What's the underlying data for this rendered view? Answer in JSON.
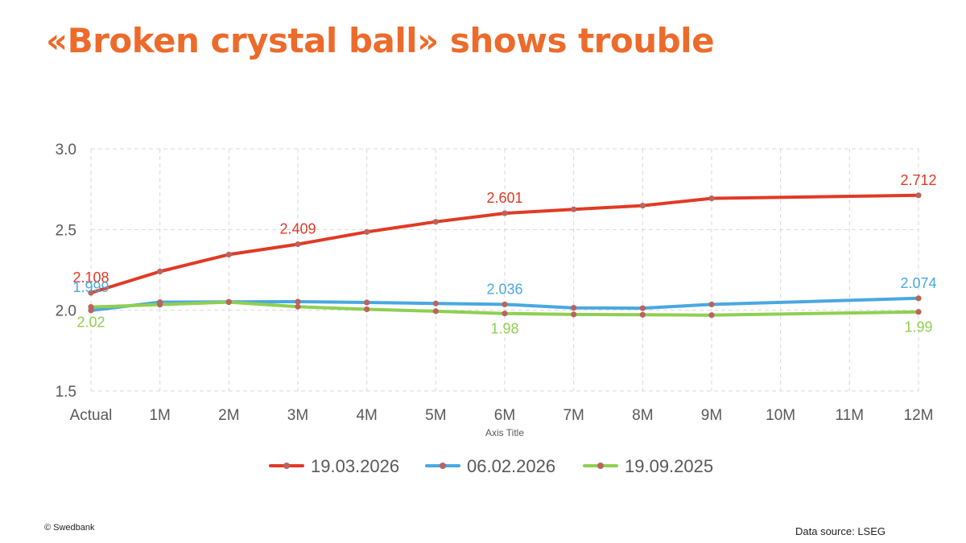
{
  "header": {
    "title": "«Broken crystal ball» shows trouble"
  },
  "footer": {
    "copyright": "© Swedbank",
    "source": "Data source: LSEG"
  },
  "colors": {
    "title": "#ec6b2b",
    "series": [
      "#e03a25",
      "#4aa8e0",
      "#8fcf52"
    ],
    "marker": "#b9645e"
  },
  "chart_data": {
    "type": "line",
    "categories": [
      "Actual",
      "1M",
      "2M",
      "3M",
      "4M",
      "5M",
      "6M",
      "7M",
      "8M",
      "9M",
      "10M",
      "11M",
      "12M"
    ],
    "xlabel": "Axis Title",
    "ylabel": "",
    "ylim": [
      1.5,
      3.0
    ],
    "yticks": [
      1.5,
      2.0,
      2.5,
      3.0
    ],
    "ytick_labels": [
      "1.5",
      "2.0",
      "2.5",
      "3.0"
    ],
    "grid": true,
    "legend_position": "bottom",
    "series": [
      {
        "name": "19.03.2026",
        "color": "#e03a25",
        "values": [
          2.108,
          2.24,
          2.345,
          2.409,
          2.485,
          2.548,
          2.601,
          2.625,
          2.648,
          2.693,
          null,
          null,
          2.712
        ],
        "labels": [
          {
            "index": 0,
            "text": "2.108"
          },
          {
            "index": 3,
            "text": "2.409"
          },
          {
            "index": 6,
            "text": "2.601"
          },
          {
            "index": 12,
            "text": "2.712"
          }
        ]
      },
      {
        "name": "06.02.2026",
        "color": "#4aa8e0",
        "values": [
          1.999,
          2.05,
          2.052,
          2.053,
          2.048,
          2.042,
          2.036,
          2.015,
          2.013,
          2.036,
          null,
          null,
          2.074
        ],
        "labels": [
          {
            "index": 0,
            "text": "1.999"
          },
          {
            "index": 6,
            "text": "2.036"
          },
          {
            "index": 12,
            "text": "2.074"
          }
        ]
      },
      {
        "name": "19.09.2025",
        "color": "#8fcf52",
        "values": [
          2.02,
          2.035,
          2.05,
          2.022,
          2.006,
          1.994,
          1.98,
          1.974,
          1.972,
          1.97,
          null,
          null,
          1.99
        ],
        "labels": [
          {
            "index": 0,
            "text": "2.02"
          },
          {
            "index": 6,
            "text": "1.98"
          },
          {
            "index": 12,
            "text": "1.99"
          }
        ]
      }
    ]
  }
}
